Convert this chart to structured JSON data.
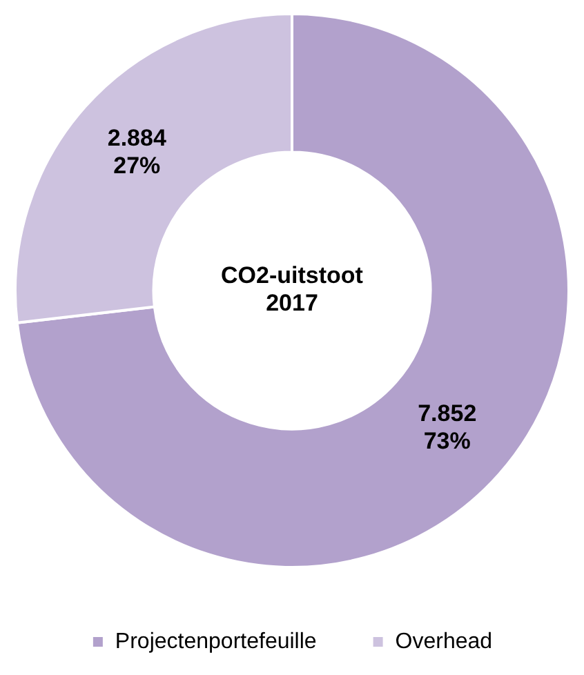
{
  "chart_data": {
    "type": "donut",
    "title": "CO2-uitstoot 2017",
    "categories": [
      "Projectenportefeuille",
      "Overhead"
    ],
    "values": [
      7852,
      2884
    ],
    "colors": [
      "#b2a1cc",
      "#cdc2df"
    ],
    "value_labels": [
      "7.852\n73%",
      "2.884\n27%"
    ],
    "legend": "bottom"
  }
}
